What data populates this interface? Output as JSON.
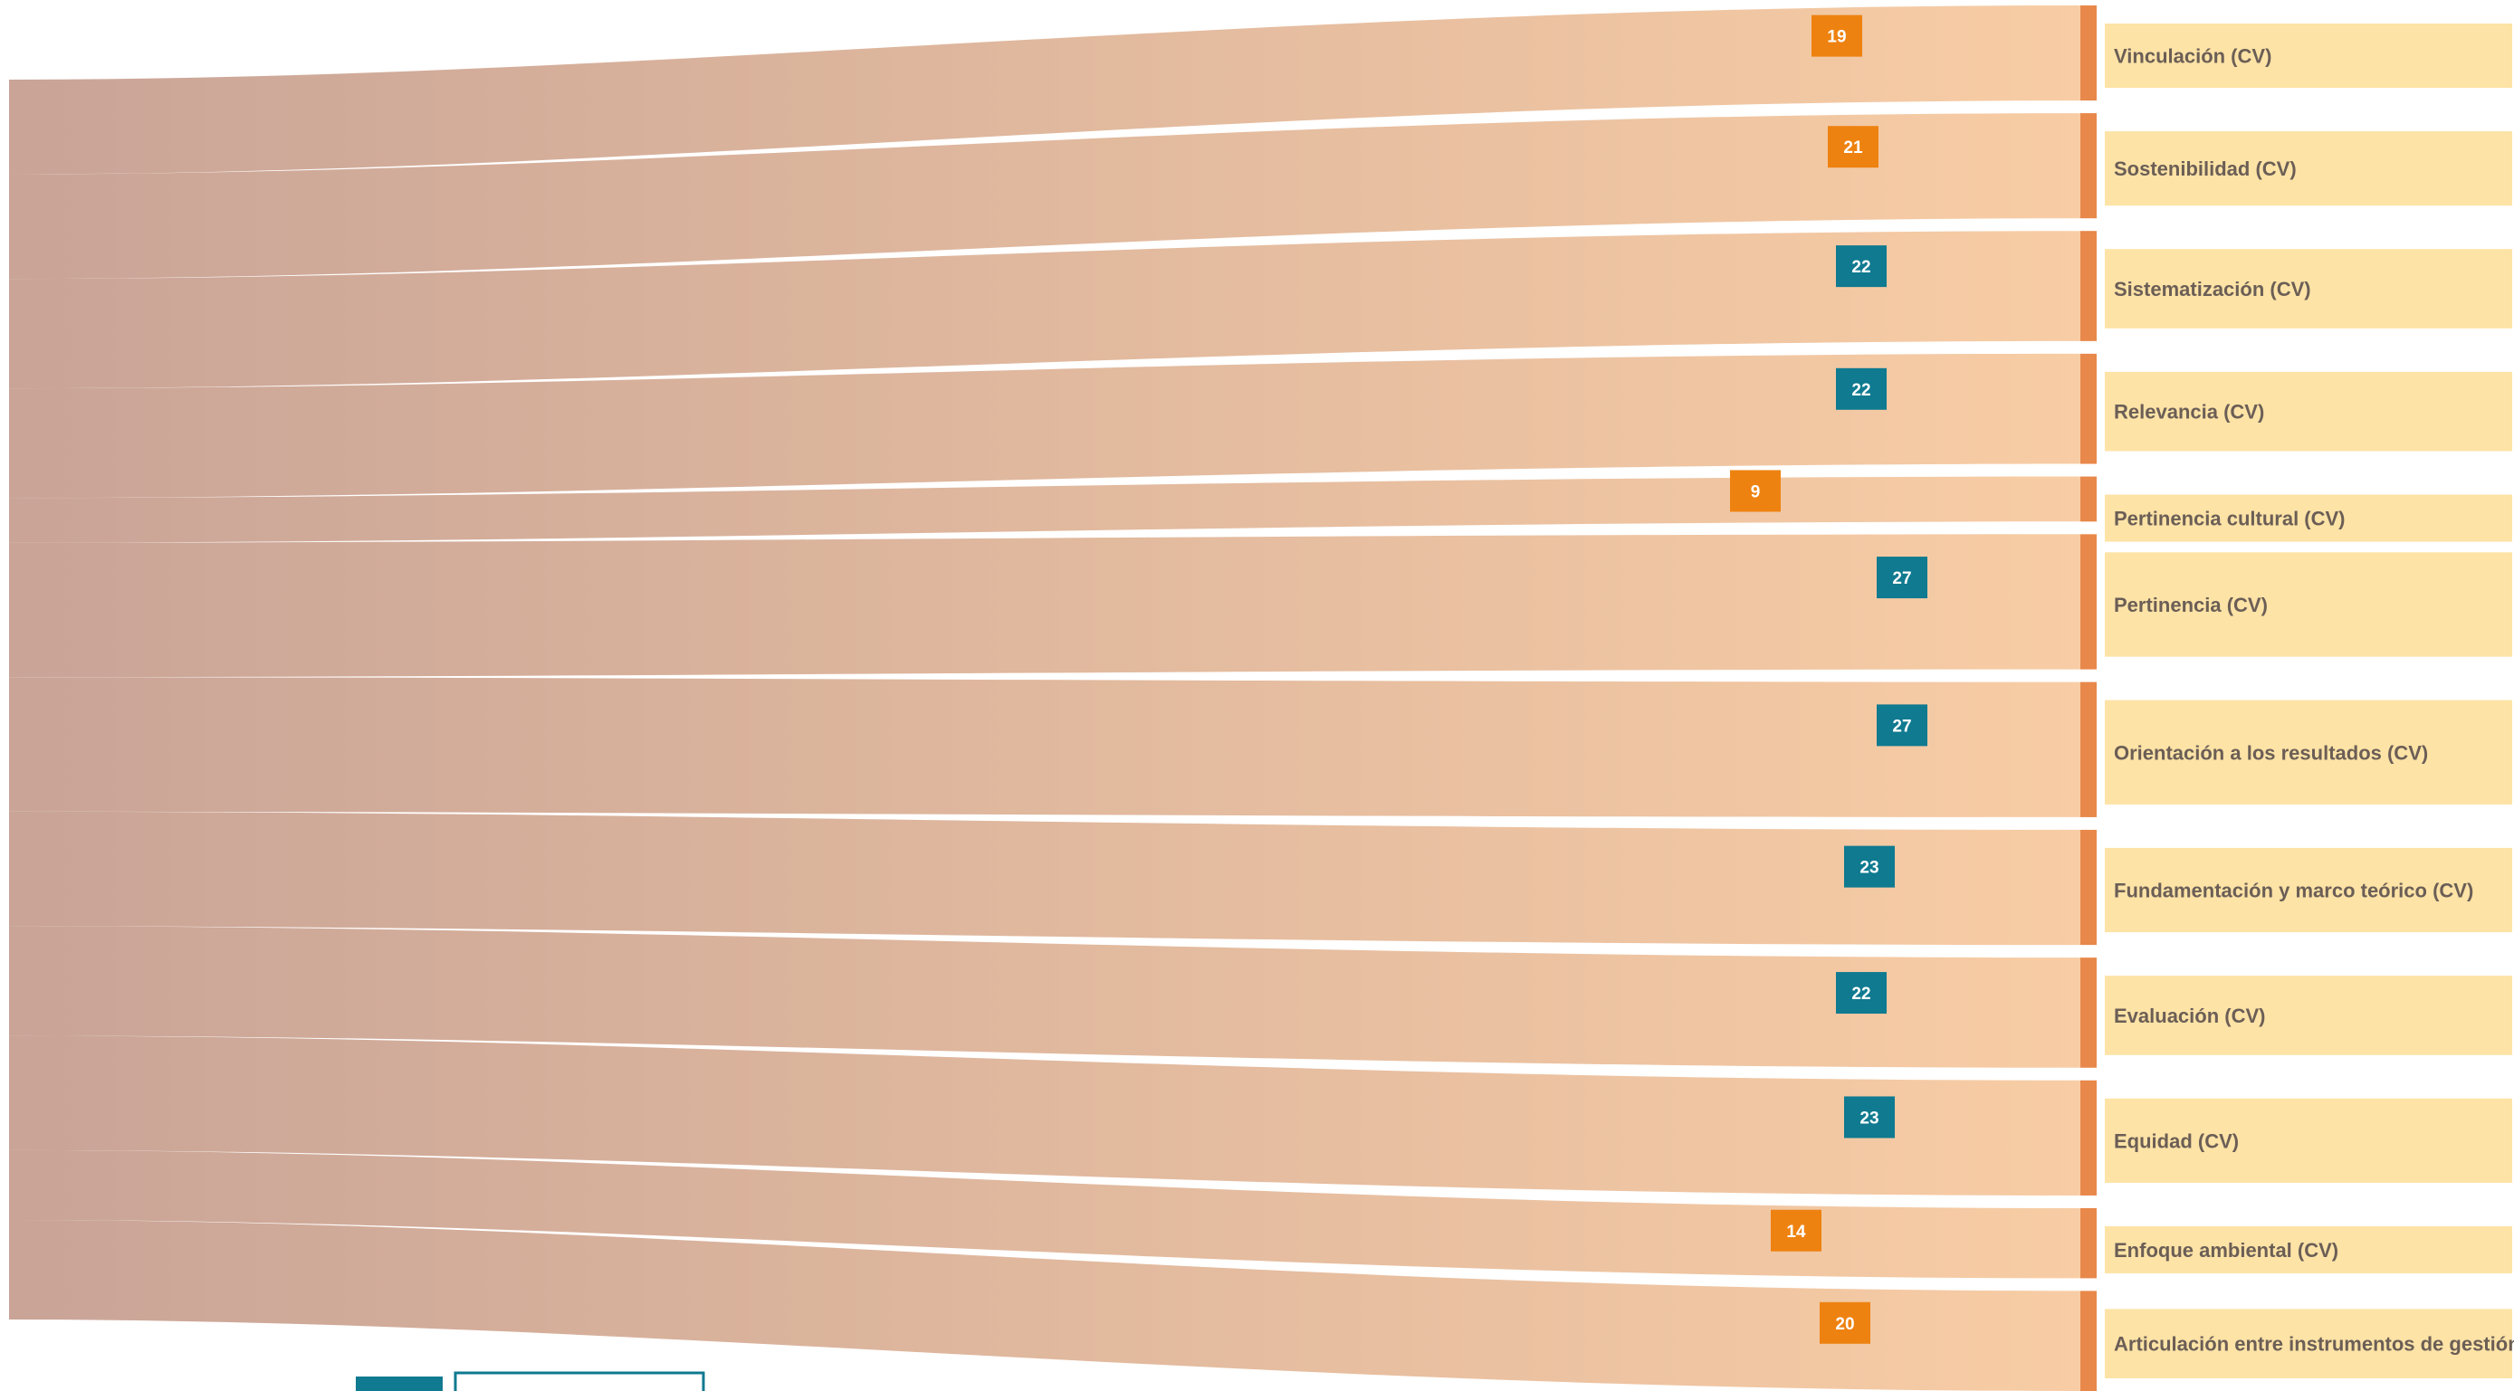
{
  "colors": {
    "flow_start": "#c9a497",
    "flow_end": "#f8cda5",
    "target_bar": "#e8884a",
    "label_box": "#fde3a6",
    "badge_orange": "#ee8210",
    "badge_teal": "#0f7a90",
    "legend_teal": "#0f7a90",
    "legend_border": "#0f7a90"
  },
  "chart_data": {
    "type": "sankey",
    "source": "",
    "links": [
      {
        "target": "Vinculación (CV)",
        "value": 19,
        "badge": "orange"
      },
      {
        "target": "Sostenibilidad (CV)",
        "value": 21,
        "badge": "orange"
      },
      {
        "target": "Sistematización (CV)",
        "value": 22,
        "badge": "teal"
      },
      {
        "target": "Relevancia (CV)",
        "value": 22,
        "badge": "teal"
      },
      {
        "target": "Pertinencia cultural (CV)",
        "value": 9,
        "badge": "orange"
      },
      {
        "target": "Pertinencia (CV)",
        "value": 27,
        "badge": "teal"
      },
      {
        "target": "Orientación a los resultados (CV)",
        "value": 27,
        "badge": "teal"
      },
      {
        "target": "Fundamentación y marco teórico (CV)",
        "value": 23,
        "badge": "teal"
      },
      {
        "target": "Evaluación (CV)",
        "value": 22,
        "badge": "teal"
      },
      {
        "target": "Equidad (CV)",
        "value": 23,
        "badge": "teal"
      },
      {
        "target": "Enfoque ambiental (CV)",
        "value": 14,
        "badge": "orange"
      },
      {
        "target": "Articulación entre instrumentos de gestión",
        "value": 20,
        "badge": "orange"
      }
    ]
  }
}
